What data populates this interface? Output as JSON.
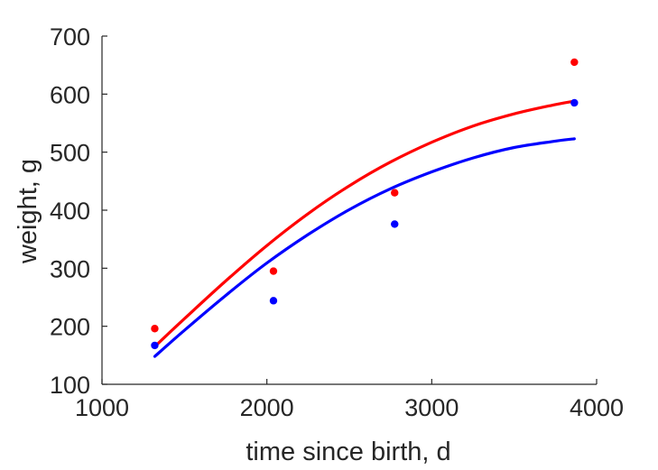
{
  "chart_data": {
    "type": "scatter",
    "title": "",
    "xlabel": "time since birth, d",
    "ylabel": "weight, g",
    "xlim": [
      1000,
      4000
    ],
    "ylim": [
      100,
      700
    ],
    "xticks": [
      1000,
      2000,
      3000,
      4000
    ],
    "yticks": [
      100,
      200,
      300,
      400,
      500,
      600,
      700
    ],
    "grid": false,
    "legend": "none",
    "series": [
      {
        "kind": "points",
        "color": "#ff0000",
        "x": [
          1320,
          2040,
          2775,
          3865
        ],
        "y": [
          196,
          295,
          430,
          655
        ]
      },
      {
        "kind": "points",
        "color": "#0000ff",
        "x": [
          1320,
          2040,
          2775,
          3865
        ],
        "y": [
          167,
          244,
          376,
          585
        ]
      },
      {
        "kind": "line",
        "color": "#ff0000",
        "x": [
          1320,
          1500,
          1750,
          2000,
          2250,
          2500,
          2750,
          3000,
          3250,
          3500,
          3750,
          3865
        ],
        "y": [
          165,
          213,
          278,
          339,
          394,
          442,
          483,
          517,
          545,
          566,
          582,
          588
        ]
      },
      {
        "kind": "line",
        "color": "#0000ff",
        "x": [
          1320,
          1500,
          1750,
          2000,
          2250,
          2500,
          2750,
          3000,
          3250,
          3500,
          3750,
          3865
        ],
        "y": [
          148,
          193,
          253,
          309,
          358,
          401,
          437,
          466,
          490,
          508,
          519,
          523
        ]
      }
    ]
  }
}
